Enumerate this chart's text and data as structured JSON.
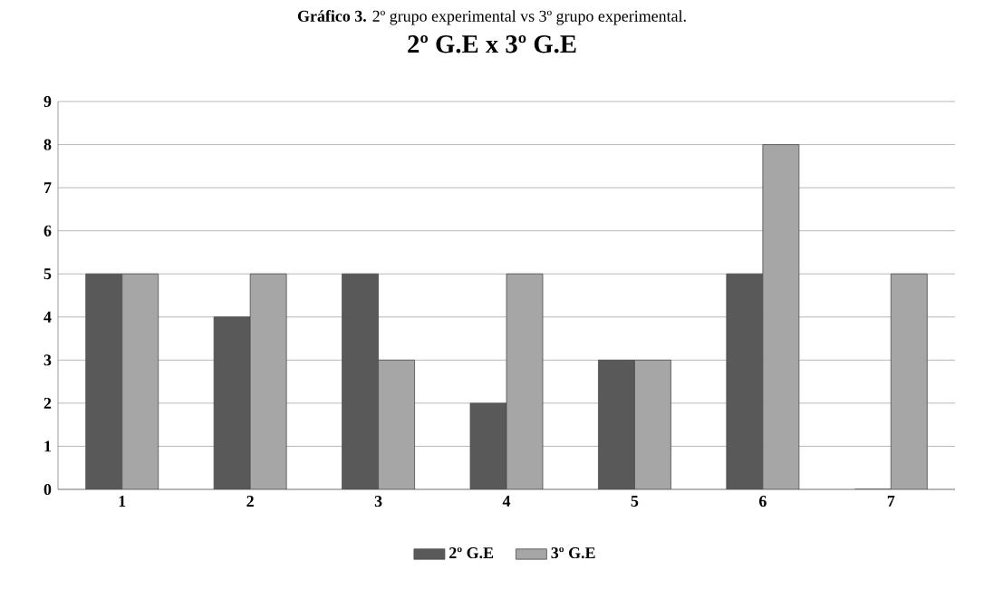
{
  "chart_data": {
    "type": "bar",
    "title": "**Gráfico 3.** 2º grupo experimental vs 3º grupo experimental.",
    "subtitle": "2º G.E x 3º G.E",
    "categories": [
      "1",
      "2",
      "3",
      "4",
      "5",
      "6",
      "7"
    ],
    "series": [
      {
        "name": "2º G.E",
        "color": "#595959",
        "values": [
          5,
          4,
          5,
          2,
          3,
          5,
          0
        ]
      },
      {
        "name": "3º G.E",
        "color": "#a6a6a6",
        "values": [
          5,
          5,
          3,
          5,
          3,
          8,
          5
        ]
      }
    ],
    "ylim": [
      0,
      9
    ],
    "yticks": [
      0,
      1,
      2,
      3,
      4,
      5,
      6,
      7,
      8,
      9
    ],
    "grid": "y",
    "legend": "bottom"
  }
}
